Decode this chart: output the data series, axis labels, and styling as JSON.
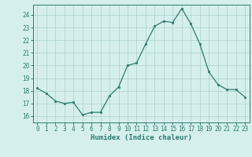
{
  "x": [
    0,
    1,
    2,
    3,
    4,
    5,
    6,
    7,
    8,
    9,
    10,
    11,
    12,
    13,
    14,
    15,
    16,
    17,
    18,
    19,
    20,
    21,
    22,
    23
  ],
  "y": [
    18.2,
    17.8,
    17.2,
    17.0,
    17.1,
    16.1,
    16.3,
    16.3,
    17.6,
    18.3,
    20.0,
    20.2,
    21.7,
    23.1,
    23.5,
    23.4,
    24.5,
    23.3,
    21.7,
    19.5,
    18.5,
    18.1,
    18.1,
    17.5
  ],
  "xlabel": "Humidex (Indice chaleur)",
  "xlim": [
    -0.5,
    23.5
  ],
  "ylim": [
    15.5,
    24.8
  ],
  "yticks": [
    16,
    17,
    18,
    19,
    20,
    21,
    22,
    23,
    24
  ],
  "xticks": [
    0,
    1,
    2,
    3,
    4,
    5,
    6,
    7,
    8,
    9,
    10,
    11,
    12,
    13,
    14,
    15,
    16,
    17,
    18,
    19,
    20,
    21,
    22,
    23
  ],
  "line_color": "#2d7a6e",
  "marker_color": "#2d7a6e",
  "bg_color": "#d5f0ec",
  "grid_color": "#aacfca",
  "axis_color": "#2d7a6e",
  "tick_color": "#2d7a6e",
  "label_color": "#2d7a6e",
  "tick_fontsize": 5.5,
  "xlabel_fontsize": 6.5
}
